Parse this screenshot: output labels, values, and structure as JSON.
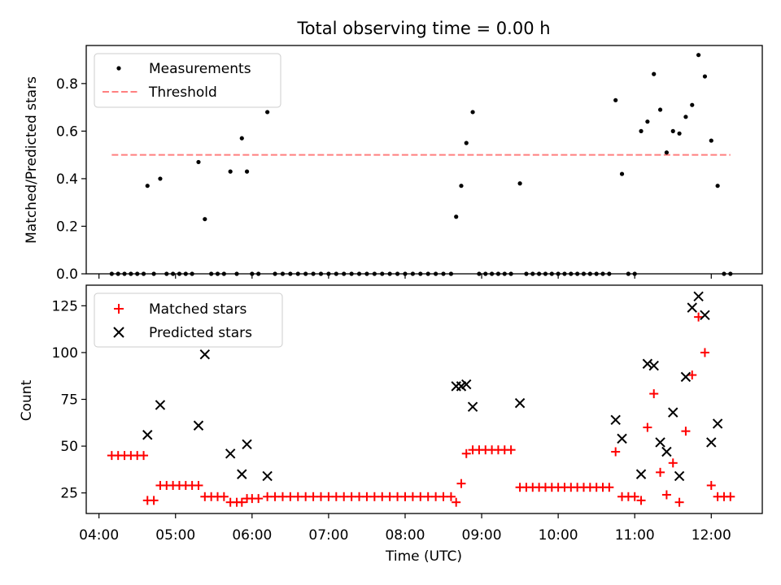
{
  "colors": {
    "measurement": "#000000",
    "threshold": "#ff7f7f",
    "matched": "#ff0000",
    "predicted": "#000000"
  },
  "chart_data": [
    {
      "type": "scatter",
      "title": "Total observing time = 0.00 h",
      "xlabel": "",
      "ylabel": "Matched/Predicted stars",
      "xlim": [
        "03:50",
        "12:40"
      ],
      "ylim": [
        0,
        0.96
      ],
      "yticks": [
        "0.0",
        "0.2",
        "0.4",
        "0.6",
        "0.8"
      ],
      "legend": {
        "position": "top-left",
        "entries": [
          "Measurements",
          "Threshold"
        ]
      },
      "threshold": {
        "name": "Threshold",
        "value": 0.5,
        "x_range": [
          "04:10",
          "12:15"
        ]
      },
      "series": [
        {
          "name": "Measurements",
          "points": [
            [
              "04:10",
              0
            ],
            [
              "04:15",
              0
            ],
            [
              "04:20",
              0
            ],
            [
              "04:25",
              0
            ],
            [
              "04:30",
              0
            ],
            [
              "04:35",
              0
            ],
            [
              "04:38",
              0.37
            ],
            [
              "04:43",
              0
            ],
            [
              "04:48",
              0.4
            ],
            [
              "04:53",
              0
            ],
            [
              "04:58",
              0
            ],
            [
              "05:03",
              0
            ],
            [
              "05:08",
              0
            ],
            [
              "05:13",
              0
            ],
            [
              "05:18",
              0.47
            ],
            [
              "05:23",
              0.23
            ],
            [
              "05:28",
              0
            ],
            [
              "05:33",
              0
            ],
            [
              "05:38",
              0
            ],
            [
              "05:43",
              0.43
            ],
            [
              "05:48",
              0
            ],
            [
              "05:52",
              0.57
            ],
            [
              "05:56",
              0.43
            ],
            [
              "06:00",
              0
            ],
            [
              "06:05",
              0
            ],
            [
              "06:12",
              0.68
            ],
            [
              "06:18",
              0
            ],
            [
              "06:24",
              0
            ],
            [
              "06:30",
              0
            ],
            [
              "06:36",
              0
            ],
            [
              "06:42",
              0
            ],
            [
              "06:48",
              0
            ],
            [
              "06:54",
              0
            ],
            [
              "07:00",
              0
            ],
            [
              "07:06",
              0
            ],
            [
              "07:12",
              0
            ],
            [
              "07:18",
              0
            ],
            [
              "07:24",
              0
            ],
            [
              "07:30",
              0
            ],
            [
              "07:36",
              0
            ],
            [
              "07:42",
              0
            ],
            [
              "07:48",
              0
            ],
            [
              "07:54",
              0
            ],
            [
              "08:00",
              0
            ],
            [
              "08:06",
              0
            ],
            [
              "08:12",
              0
            ],
            [
              "08:18",
              0
            ],
            [
              "08:24",
              0
            ],
            [
              "08:30",
              0
            ],
            [
              "08:36",
              0
            ],
            [
              "08:40",
              0.24
            ],
            [
              "08:44",
              0.37
            ],
            [
              "08:48",
              0.55
            ],
            [
              "08:53",
              0.68
            ],
            [
              "08:58",
              0
            ],
            [
              "09:03",
              0
            ],
            [
              "09:08",
              0
            ],
            [
              "09:13",
              0
            ],
            [
              "09:18",
              0
            ],
            [
              "09:23",
              0
            ],
            [
              "09:30",
              0.38
            ],
            [
              "09:35",
              0
            ],
            [
              "09:40",
              0
            ],
            [
              "09:45",
              0
            ],
            [
              "09:50",
              0
            ],
            [
              "09:55",
              0
            ],
            [
              "10:00",
              0
            ],
            [
              "10:05",
              0
            ],
            [
              "10:10",
              0
            ],
            [
              "10:15",
              0
            ],
            [
              "10:20",
              0
            ],
            [
              "10:25",
              0
            ],
            [
              "10:30",
              0
            ],
            [
              "10:35",
              0
            ],
            [
              "10:40",
              0
            ],
            [
              "10:45",
              0.73
            ],
            [
              "10:50",
              0.42
            ],
            [
              "10:55",
              0
            ],
            [
              "11:00",
              0
            ],
            [
              "11:05",
              0.6
            ],
            [
              "11:10",
              0.64
            ],
            [
              "11:15",
              0.84
            ],
            [
              "11:20",
              0.69
            ],
            [
              "11:25",
              0.51
            ],
            [
              "11:30",
              0.6
            ],
            [
              "11:35",
              0.59
            ],
            [
              "11:40",
              0.66
            ],
            [
              "11:45",
              0.71
            ],
            [
              "11:50",
              0.92
            ],
            [
              "11:55",
              0.83
            ],
            [
              "12:00",
              0.56
            ],
            [
              "12:05",
              0.37
            ],
            [
              "12:10",
              0
            ],
            [
              "12:15",
              0
            ]
          ]
        }
      ]
    },
    {
      "type": "scatter",
      "title": "",
      "xlabel": "Time (UTC)",
      "ylabel": "Count",
      "xlim": [
        "03:50",
        "12:40"
      ],
      "ylim": [
        14,
        136
      ],
      "yticks": [
        "25",
        "50",
        "75",
        "100",
        "125"
      ],
      "xticks": [
        "04:00",
        "05:00",
        "06:00",
        "07:00",
        "08:00",
        "09:00",
        "10:00",
        "11:00",
        "12:00"
      ],
      "legend": {
        "position": "top-left",
        "entries": [
          "Matched stars",
          "Predicted stars"
        ]
      },
      "series": [
        {
          "name": "Matched stars",
          "marker": "+",
          "points": [
            [
              "04:10",
              45
            ],
            [
              "04:15",
              45
            ],
            [
              "04:20",
              45
            ],
            [
              "04:25",
              45
            ],
            [
              "04:30",
              45
            ],
            [
              "04:35",
              45
            ],
            [
              "04:38",
              21
            ],
            [
              "04:43",
              21
            ],
            [
              "04:48",
              29
            ],
            [
              "04:53",
              29
            ],
            [
              "04:58",
              29
            ],
            [
              "05:03",
              29
            ],
            [
              "05:08",
              29
            ],
            [
              "05:13",
              29
            ],
            [
              "05:18",
              29
            ],
            [
              "05:23",
              23
            ],
            [
              "05:28",
              23
            ],
            [
              "05:33",
              23
            ],
            [
              "05:38",
              23
            ],
            [
              "05:43",
              20
            ],
            [
              "05:48",
              20
            ],
            [
              "05:52",
              20
            ],
            [
              "05:56",
              22
            ],
            [
              "06:00",
              22
            ],
            [
              "06:05",
              22
            ],
            [
              "06:12",
              23
            ],
            [
              "06:18",
              23
            ],
            [
              "06:24",
              23
            ],
            [
              "06:30",
              23
            ],
            [
              "06:36",
              23
            ],
            [
              "06:42",
              23
            ],
            [
              "06:48",
              23
            ],
            [
              "06:54",
              23
            ],
            [
              "07:00",
              23
            ],
            [
              "07:06",
              23
            ],
            [
              "07:12",
              23
            ],
            [
              "07:18",
              23
            ],
            [
              "07:24",
              23
            ],
            [
              "07:30",
              23
            ],
            [
              "07:36",
              23
            ],
            [
              "07:42",
              23
            ],
            [
              "07:48",
              23
            ],
            [
              "07:54",
              23
            ],
            [
              "08:00",
              23
            ],
            [
              "08:06",
              23
            ],
            [
              "08:12",
              23
            ],
            [
              "08:18",
              23
            ],
            [
              "08:24",
              23
            ],
            [
              "08:30",
              23
            ],
            [
              "08:36",
              23
            ],
            [
              "08:40",
              20
            ],
            [
              "08:44",
              30
            ],
            [
              "08:48",
              46
            ],
            [
              "08:53",
              48
            ],
            [
              "08:58",
              48
            ],
            [
              "09:03",
              48
            ],
            [
              "09:08",
              48
            ],
            [
              "09:13",
              48
            ],
            [
              "09:18",
              48
            ],
            [
              "09:23",
              48
            ],
            [
              "09:30",
              28
            ],
            [
              "09:35",
              28
            ],
            [
              "09:40",
              28
            ],
            [
              "09:45",
              28
            ],
            [
              "09:50",
              28
            ],
            [
              "09:55",
              28
            ],
            [
              "10:00",
              28
            ],
            [
              "10:05",
              28
            ],
            [
              "10:10",
              28
            ],
            [
              "10:15",
              28
            ],
            [
              "10:20",
              28
            ],
            [
              "10:25",
              28
            ],
            [
              "10:30",
              28
            ],
            [
              "10:35",
              28
            ],
            [
              "10:40",
              28
            ],
            [
              "10:45",
              47
            ],
            [
              "10:50",
              23
            ],
            [
              "10:55",
              23
            ],
            [
              "11:00",
              23
            ],
            [
              "11:05",
              21
            ],
            [
              "11:10",
              60
            ],
            [
              "11:15",
              78
            ],
            [
              "11:20",
              36
            ],
            [
              "11:25",
              24
            ],
            [
              "11:30",
              41
            ],
            [
              "11:35",
              20
            ],
            [
              "11:40",
              58
            ],
            [
              "11:45",
              88
            ],
            [
              "11:50",
              119
            ],
            [
              "11:55",
              100
            ],
            [
              "12:00",
              29
            ],
            [
              "12:05",
              23
            ],
            [
              "12:10",
              23
            ],
            [
              "12:15",
              23
            ]
          ]
        },
        {
          "name": "Predicted stars",
          "marker": "x",
          "points": [
            [
              "04:38",
              56
            ],
            [
              "04:48",
              72
            ],
            [
              "05:18",
              61
            ],
            [
              "05:23",
              99
            ],
            [
              "05:43",
              46
            ],
            [
              "05:52",
              35
            ],
            [
              "05:56",
              51
            ],
            [
              "06:12",
              34
            ],
            [
              "08:40",
              82
            ],
            [
              "08:44",
              82
            ],
            [
              "08:48",
              83
            ],
            [
              "08:53",
              71
            ],
            [
              "09:30",
              73
            ],
            [
              "10:45",
              64
            ],
            [
              "10:50",
              54
            ],
            [
              "11:05",
              35
            ],
            [
              "11:10",
              94
            ],
            [
              "11:15",
              93
            ],
            [
              "11:20",
              52
            ],
            [
              "11:25",
              47
            ],
            [
              "11:30",
              68
            ],
            [
              "11:35",
              34
            ],
            [
              "11:40",
              87
            ],
            [
              "11:45",
              124
            ],
            [
              "11:50",
              130
            ],
            [
              "11:55",
              120
            ],
            [
              "12:00",
              52
            ],
            [
              "12:05",
              62
            ]
          ]
        }
      ]
    }
  ]
}
